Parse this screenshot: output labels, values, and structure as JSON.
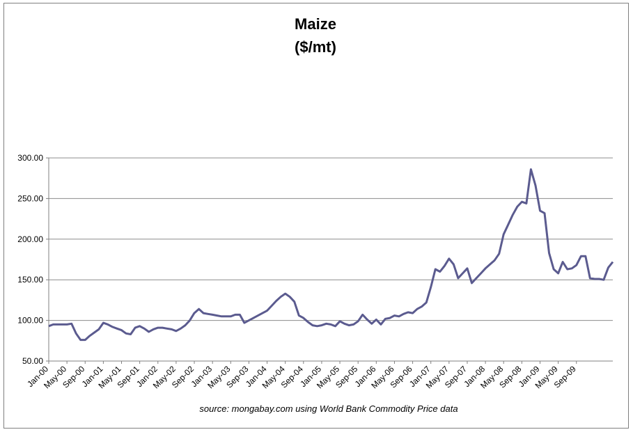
{
  "chart_data": {
    "type": "line",
    "title": "Maize",
    "subtitle": "($/mt)",
    "source": "source: mongabay.com using World Bank Commodity Price data",
    "ylim": [
      50,
      300
    ],
    "y_ticks": [
      "300.00",
      "250.00",
      "200.00",
      "150.00",
      "100.00",
      "50.00"
    ],
    "y_tick_values": [
      300,
      250,
      200,
      150,
      100,
      50
    ],
    "x_tick_labels": [
      "Jan-00",
      "May-00",
      "Sep-00",
      "Jan-01",
      "May-01",
      "Sep-01",
      "Jan-02",
      "May-02",
      "Sep-02",
      "Jan-03",
      "May-03",
      "Sep-03",
      "Jan-04",
      "May-04",
      "Sep-04",
      "Jan-05",
      "May-05",
      "Sep-05",
      "Jan-06",
      "May-06",
      "Sep-06",
      "Jan-07",
      "May-07",
      "Sep-07",
      "Jan-08",
      "May-08",
      "Sep-08",
      "Jan-09",
      "May-09",
      "Sep-09"
    ],
    "grid": "horizontal",
    "line_color": "#5b5b8f",
    "series": [
      {
        "values": [
          93,
          95,
          95,
          95,
          95,
          96,
          84,
          76,
          76,
          81,
          85,
          89,
          97,
          95,
          92,
          90,
          88,
          84,
          83,
          91,
          93,
          90,
          86,
          89,
          91,
          91,
          90,
          89,
          87,
          90,
          94,
          100,
          109,
          114,
          109,
          108,
          107,
          106,
          105,
          105,
          105,
          107,
          107,
          97,
          100,
          103,
          106,
          109,
          112,
          118,
          124,
          129,
          133,
          129,
          123,
          106,
          103,
          98,
          94,
          93,
          94,
          96,
          95,
          93,
          99,
          96,
          94,
          95,
          99,
          107,
          101,
          96,
          101,
          95,
          102,
          103,
          106,
          105,
          108,
          110,
          109,
          114,
          117,
          122,
          141,
          163,
          160,
          167,
          176,
          169,
          152,
          158,
          164,
          146,
          152,
          158,
          164,
          169,
          174,
          182,
          206,
          218,
          230,
          240,
          246,
          244,
          286,
          266,
          235,
          232,
          183,
          163,
          158,
          172,
          163,
          164,
          168,
          179,
          179,
          152,
          151,
          151,
          150,
          165,
          172
        ]
      }
    ]
  }
}
